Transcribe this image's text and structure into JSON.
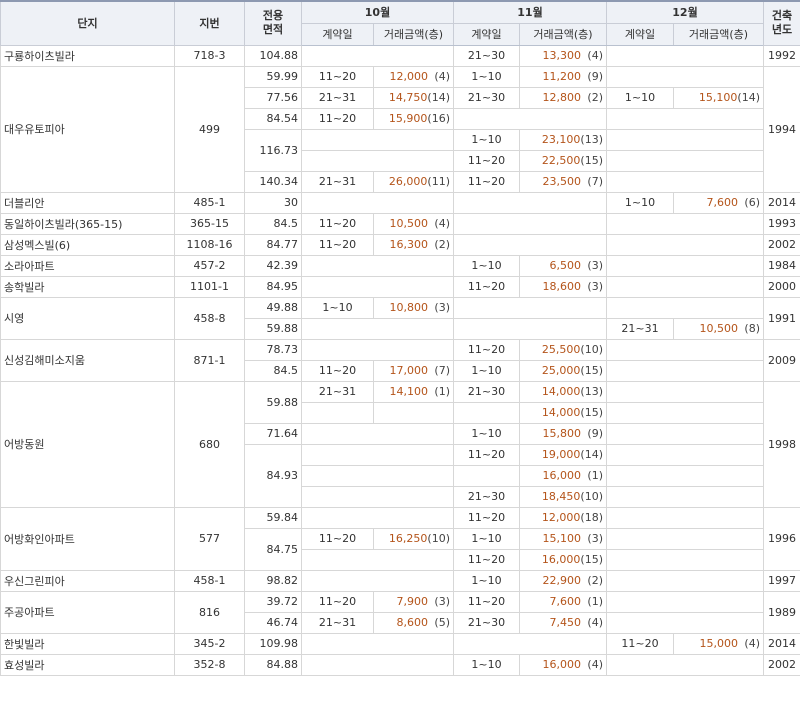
{
  "header": {
    "complex": "단지",
    "lot": "지번",
    "area": "전용\n면적",
    "year": "건축\n년도",
    "months": [
      "10월",
      "11월",
      "12월"
    ],
    "date_label": "계약일",
    "amount_label": "거래금액(층)"
  },
  "groups": [
    {
      "name": "구룡하이츠빌라",
      "lot": "718-3",
      "year": "1992",
      "areas": [
        {
          "area": "104.88",
          "rows": [
            [
              null,
              {
                "d": "21~30",
                "a": "13,300",
                "f": "(4)"
              },
              null
            ]
          ]
        }
      ]
    },
    {
      "name": "대우유토피아",
      "lot": "499",
      "year": "1994",
      "areas": [
        {
          "area": "59.99",
          "rows": [
            [
              {
                "d": "11~20",
                "a": "12,000",
                "f": "(4)"
              },
              {
                "d": "1~10",
                "a": "11,200",
                "f": "(9)"
              },
              null
            ]
          ]
        },
        {
          "area": "77.56",
          "rows": [
            [
              {
                "d": "21~31",
                "a": "14,750",
                "f": "(14)"
              },
              {
                "d": "21~30",
                "a": "12,800",
                "f": "(2)"
              },
              {
                "d": "1~10",
                "a": "15,100",
                "f": "(14)"
              }
            ]
          ]
        },
        {
          "area": "84.54",
          "rows": [
            [
              {
                "d": "11~20",
                "a": "15,900",
                "f": "(16)"
              },
              null,
              null
            ]
          ]
        },
        {
          "area": "116.73",
          "rows": [
            [
              null,
              {
                "d": "1~10",
                "a": "23,100",
                "f": "(13)"
              },
              null
            ],
            [
              null,
              {
                "d": "11~20",
                "a": "22,500",
                "f": "(15)"
              },
              null
            ]
          ]
        },
        {
          "area": "140.34",
          "rows": [
            [
              {
                "d": "21~31",
                "a": "26,000",
                "f": "(11)"
              },
              {
                "d": "11~20",
                "a": "23,500",
                "f": "(7)"
              },
              null
            ]
          ]
        }
      ]
    },
    {
      "name": "더블리안",
      "lot": "485-1",
      "year": "2014",
      "areas": [
        {
          "area": "30",
          "rows": [
            [
              null,
              null,
              {
                "d": "1~10",
                "a": "7,600",
                "f": "(6)"
              }
            ]
          ]
        }
      ]
    },
    {
      "name": "동일하이츠빌라(365-15)",
      "lot": "365-15",
      "year": "1993",
      "areas": [
        {
          "area": "84.5",
          "rows": [
            [
              {
                "d": "11~20",
                "a": "10,500",
                "f": "(4)"
              },
              null,
              null
            ]
          ]
        }
      ]
    },
    {
      "name": "삼성멕스빌(6)",
      "lot": "1108-16",
      "year": "2002",
      "areas": [
        {
          "area": "84.77",
          "rows": [
            [
              {
                "d": "11~20",
                "a": "16,300",
                "f": "(2)"
              },
              null,
              null
            ]
          ]
        }
      ]
    },
    {
      "name": "소라아파트",
      "lot": "457-2",
      "year": "1984",
      "areas": [
        {
          "area": "42.39",
          "rows": [
            [
              null,
              {
                "d": "1~10",
                "a": "6,500",
                "f": "(3)"
              },
              null
            ]
          ]
        }
      ]
    },
    {
      "name": "송학빌라",
      "lot": "1101-1",
      "year": "2000",
      "areas": [
        {
          "area": "84.95",
          "rows": [
            [
              null,
              {
                "d": "11~20",
                "a": "18,600",
                "f": "(3)"
              },
              null
            ]
          ]
        }
      ]
    },
    {
      "name": "시영",
      "lot": "458-8",
      "year": "1991",
      "areas": [
        {
          "area": "49.88",
          "rows": [
            [
              {
                "d": "1~10",
                "a": "10,800",
                "f": "(3)"
              },
              null,
              null
            ]
          ]
        },
        {
          "area": "59.88",
          "rows": [
            [
              null,
              null,
              {
                "d": "21~31",
                "a": "10,500",
                "f": "(8)"
              }
            ]
          ]
        }
      ]
    },
    {
      "name": "신성김해미소지움",
      "lot": "871-1",
      "year": "2009",
      "areas": [
        {
          "area": "78.73",
          "rows": [
            [
              null,
              {
                "d": "11~20",
                "a": "25,500",
                "f": "(10)"
              },
              null
            ]
          ]
        },
        {
          "area": "84.5",
          "rows": [
            [
              {
                "d": "11~20",
                "a": "17,000",
                "f": "(7)"
              },
              {
                "d": "1~10",
                "a": "25,000",
                "f": "(15)"
              },
              null
            ]
          ]
        }
      ]
    },
    {
      "name": "어방동원",
      "lot": "680",
      "year": "1998",
      "areas": [
        {
          "area": "59.88",
          "rows": [
            [
              {
                "d": "21~31",
                "a": "14,100",
                "f": "(1)"
              },
              {
                "d": "21~30",
                "a": "14,000",
                "f": "(13)"
              },
              null
            ],
            [
              {
                "d": "",
                "a": "",
                "f": ""
              },
              {
                "d": "",
                "a": "14,000",
                "f": "(15)"
              },
              null
            ]
          ]
        },
        {
          "area": "71.64",
          "rows": [
            [
              null,
              {
                "d": "1~10",
                "a": "15,800",
                "f": "(9)"
              },
              null
            ]
          ]
        },
        {
          "area": "84.93",
          "rows": [
            [
              null,
              {
                "d": "11~20",
                "a": "19,000",
                "f": "(14)"
              },
              null
            ],
            [
              null,
              {
                "d": "",
                "a": "16,000",
                "f": "(1)"
              },
              null
            ],
            [
              null,
              {
                "d": "21~30",
                "a": "18,450",
                "f": "(10)"
              },
              null
            ]
          ]
        }
      ]
    },
    {
      "name": "어방화인아파트",
      "lot": "577",
      "year": "1996",
      "areas": [
        {
          "area": "59.84",
          "rows": [
            [
              null,
              {
                "d": "11~20",
                "a": "12,000",
                "f": "(18)"
              },
              null
            ]
          ]
        },
        {
          "area": "84.75",
          "rows": [
            [
              {
                "d": "11~20",
                "a": "16,250",
                "f": "(10)"
              },
              {
                "d": "1~10",
                "a": "15,100",
                "f": "(3)"
              },
              null
            ],
            [
              null,
              {
                "d": "11~20",
                "a": "16,000",
                "f": "(15)"
              },
              null
            ]
          ]
        }
      ]
    },
    {
      "name": "우신그린피아",
      "lot": "458-1",
      "year": "1997",
      "areas": [
        {
          "area": "98.82",
          "rows": [
            [
              null,
              {
                "d": "1~10",
                "a": "22,900",
                "f": "(2)"
              },
              null
            ]
          ]
        }
      ]
    },
    {
      "name": "주공아파트",
      "lot": "816",
      "year": "1989",
      "areas": [
        {
          "area": "39.72",
          "rows": [
            [
              {
                "d": "11~20",
                "a": "7,900",
                "f": "(3)"
              },
              {
                "d": "11~20",
                "a": "7,600",
                "f": "(1)"
              },
              null
            ]
          ]
        },
        {
          "area": "46.74",
          "rows": [
            [
              {
                "d": "21~31",
                "a": "8,600",
                "f": "(5)"
              },
              {
                "d": "21~30",
                "a": "7,450",
                "f": "(4)"
              },
              null
            ]
          ]
        }
      ]
    },
    {
      "name": "한빛빌라",
      "lot": "345-2",
      "year": "2014",
      "areas": [
        {
          "area": "109.98",
          "rows": [
            [
              null,
              null,
              {
                "d": "11~20",
                "a": "15,000",
                "f": "(4)"
              }
            ]
          ]
        }
      ]
    },
    {
      "name": "효성빌라",
      "lot": "352-8",
      "year": "2002",
      "areas": [
        {
          "area": "84.88",
          "rows": [
            [
              null,
              {
                "d": "1~10",
                "a": "16,000",
                "f": "(4)"
              },
              null
            ]
          ]
        }
      ]
    }
  ]
}
